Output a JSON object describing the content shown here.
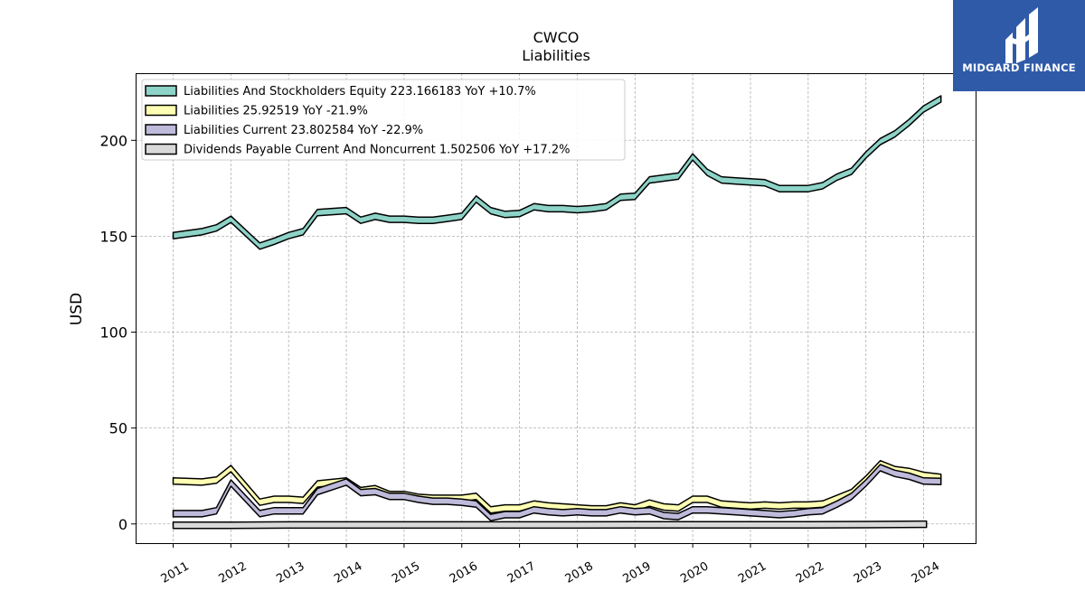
{
  "brand": {
    "name": "MIDGARD FINANCE",
    "color": "#2f5aa8"
  },
  "chart_data": {
    "type": "area",
    "title": "CWCO",
    "subtitle": "Liabilities",
    "ylabel": "USD",
    "xlabel": "",
    "ylim": [
      -10,
      235
    ],
    "xlim": [
      2010.35,
      2024.9
    ],
    "grid": true,
    "legend_position": "top-left",
    "y_ticks": [
      0,
      50,
      100,
      150,
      200
    ],
    "x_ticks": [
      2011,
      2012,
      2013,
      2014,
      2015,
      2016,
      2017,
      2018,
      2019,
      2020,
      2021,
      2022,
      2023,
      2024
    ],
    "series": [
      {
        "name": "Liabilities And Stockholders Equity",
        "legend": "Liabilities And Stockholders Equity  223.166183 YoY +10.7%",
        "color": "#8dd3c7",
        "x": [
          2011.0,
          2011.5,
          2011.75,
          2012.0,
          2012.5,
          2012.75,
          2013.0,
          2013.25,
          2013.5,
          2014.0,
          2014.25,
          2014.5,
          2014.75,
          2015.0,
          2015.25,
          2015.5,
          2015.75,
          2016.0,
          2016.25,
          2016.5,
          2016.75,
          2017.0,
          2017.25,
          2017.5,
          2017.75,
          2018.0,
          2018.25,
          2018.5,
          2018.75,
          2019.0,
          2019.25,
          2019.5,
          2019.75,
          2020.0,
          2020.25,
          2020.5,
          2020.75,
          2021.0,
          2021.25,
          2021.5,
          2021.75,
          2022.0,
          2022.25,
          2022.5,
          2022.75,
          2023.0,
          2023.25,
          2023.5,
          2023.75,
          2024.0,
          2024.3
        ],
        "values": [
          152,
          154,
          156,
          160.5,
          146.5,
          149,
          152,
          154,
          164,
          165,
          160,
          162,
          160.5,
          160.5,
          160,
          160,
          161,
          162,
          171,
          165,
          163,
          163.5,
          167,
          166,
          166,
          165.5,
          166,
          167,
          172,
          172.5,
          181,
          182,
          183,
          193,
          185,
          181,
          180.5,
          180,
          179.5,
          176.5,
          176.5,
          176.5,
          178,
          182.5,
          185.5,
          194,
          201,
          205,
          211,
          218,
          223.2
        ]
      },
      {
        "name": "Liabilities",
        "legend": "Liabilities  25.92519 YoY -21.9%",
        "color": "#ffffb3",
        "x": [
          2011.0,
          2011.5,
          2011.75,
          2012.0,
          2012.5,
          2012.75,
          2013.0,
          2013.25,
          2013.5,
          2014.0,
          2014.25,
          2014.5,
          2014.75,
          2015.0,
          2015.25,
          2015.5,
          2015.75,
          2016.0,
          2016.25,
          2016.5,
          2016.75,
          2017.0,
          2017.25,
          2017.5,
          2017.75,
          2018.0,
          2018.25,
          2018.5,
          2018.75,
          2019.0,
          2019.25,
          2019.5,
          2019.75,
          2020.0,
          2020.25,
          2020.5,
          2020.75,
          2021.0,
          2021.25,
          2021.5,
          2021.75,
          2022.0,
          2022.25,
          2022.5,
          2022.75,
          2023.0,
          2023.25,
          2023.5,
          2023.75,
          2024.0,
          2024.3
        ],
        "values": [
          24,
          23.5,
          24.5,
          30.5,
          13,
          14.5,
          14.5,
          14,
          22.5,
          24,
          19,
          20,
          17,
          17,
          15.5,
          15,
          15,
          15,
          16,
          9,
          10,
          10,
          12,
          11,
          10.5,
          10,
          9.5,
          9.5,
          11,
          10,
          12.5,
          10.5,
          10,
          14.5,
          14.5,
          12,
          11.5,
          11,
          11.5,
          11,
          11.5,
          11.5,
          12,
          15,
          18,
          25,
          33,
          30,
          29,
          27,
          25.9
        ]
      },
      {
        "name": "Liabilities Current",
        "legend": "Liabilities Current  23.802584 YoY -22.9%",
        "color": "#bebada",
        "x": [
          2011.0,
          2011.5,
          2011.75,
          2012.0,
          2012.5,
          2012.75,
          2013.0,
          2013.25,
          2013.5,
          2014.0,
          2014.25,
          2014.5,
          2014.75,
          2015.0,
          2015.25,
          2015.5,
          2015.75,
          2016.0,
          2016.25,
          2016.5,
          2016.75,
          2017.0,
          2017.25,
          2017.5,
          2017.75,
          2018.0,
          2018.25,
          2018.5,
          2018.75,
          2019.0,
          2019.25,
          2019.5,
          2019.75,
          2020.0,
          2020.25,
          2020.5,
          2020.75,
          2021.0,
          2021.25,
          2021.5,
          2021.75,
          2022.0,
          2022.25,
          2022.5,
          2022.75,
          2023.0,
          2023.25,
          2023.5,
          2023.75,
          2024.0,
          2024.3
        ],
        "values": [
          7,
          7,
          8.5,
          23,
          7,
          8.5,
          8.5,
          8.5,
          18.5,
          23.5,
          18,
          18.5,
          16,
          16,
          14.5,
          13.5,
          13.5,
          13,
          12,
          5,
          6.5,
          6.5,
          9,
          8,
          7.5,
          8,
          7.5,
          7.5,
          9,
          8,
          8.5,
          6,
          5.5,
          9,
          9,
          8.5,
          8,
          7.5,
          7,
          6.5,
          7,
          8,
          8.5,
          12,
          16,
          23,
          31,
          28,
          26.5,
          24,
          23.8
        ]
      },
      {
        "name": "Dividends Payable Current And Noncurrent",
        "legend": "Dividends Payable Current And Noncurrent  1.502506 YoY +17.2%",
        "color": "#d9d9d9",
        "x": [
          2011.0,
          2012.0,
          2013.0,
          2014.0,
          2015.0,
          2016.0,
          2017.0,
          2018.0,
          2019.0,
          2020.0,
          2021.0,
          2022.0,
          2023.0,
          2024.05
        ],
        "values": [
          1.0,
          1.0,
          1.1,
          1.1,
          1.1,
          1.1,
          1.1,
          1.1,
          1.2,
          1.2,
          1.2,
          1.2,
          1.3,
          1.5
        ]
      }
    ]
  }
}
